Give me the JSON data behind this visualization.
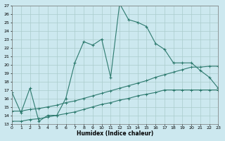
{
  "title": "",
  "xlabel": "Humidex (Indice chaleur)",
  "bg_color": "#cce8ef",
  "grid_color": "#aacccc",
  "line_color": "#2d7a6e",
  "xlim": [
    0,
    23
  ],
  "ylim": [
    13,
    27
  ],
  "yticks": [
    13,
    14,
    15,
    16,
    17,
    18,
    19,
    20,
    21,
    22,
    23,
    24,
    25,
    26,
    27
  ],
  "xticks": [
    0,
    1,
    2,
    3,
    4,
    5,
    6,
    7,
    8,
    9,
    10,
    11,
    12,
    13,
    14,
    15,
    16,
    17,
    18,
    19,
    20,
    21,
    22,
    23
  ],
  "line1_x": [
    0,
    1,
    2,
    3,
    4,
    5,
    6,
    7,
    8,
    9,
    10,
    11,
    12,
    13,
    14,
    15,
    16,
    17,
    18,
    19,
    20,
    21,
    22,
    23
  ],
  "line1_y": [
    16.7,
    14.3,
    17.2,
    13.3,
    14.0,
    14.0,
    16.0,
    20.2,
    22.7,
    22.3,
    23.0,
    18.5,
    27.2,
    25.3,
    25.0,
    24.5,
    22.5,
    21.8,
    20.2,
    20.2,
    20.2,
    19.3,
    18.5,
    17.2
  ],
  "line2_x": [
    0,
    1,
    2,
    3,
    4,
    5,
    6,
    7,
    8,
    9,
    10,
    11,
    12,
    13,
    14,
    15,
    16,
    17,
    18,
    19,
    20,
    21,
    22,
    23
  ],
  "line2_y": [
    14.5,
    14.5,
    14.7,
    14.8,
    15.0,
    15.2,
    15.5,
    15.7,
    16.0,
    16.3,
    16.6,
    16.9,
    17.2,
    17.5,
    17.8,
    18.1,
    18.5,
    18.8,
    19.1,
    19.4,
    19.7,
    19.7,
    19.8,
    19.8
  ],
  "line3_x": [
    0,
    1,
    2,
    3,
    4,
    5,
    6,
    7,
    8,
    9,
    10,
    11,
    12,
    13,
    14,
    15,
    16,
    17,
    18,
    19,
    20,
    21,
    22,
    23
  ],
  "line3_y": [
    13.3,
    13.3,
    13.5,
    13.6,
    13.8,
    14.0,
    14.2,
    14.4,
    14.7,
    15.0,
    15.3,
    15.5,
    15.8,
    16.0,
    16.3,
    16.5,
    16.7,
    17.0,
    17.0,
    17.0,
    17.0,
    17.0,
    17.0,
    17.0
  ]
}
